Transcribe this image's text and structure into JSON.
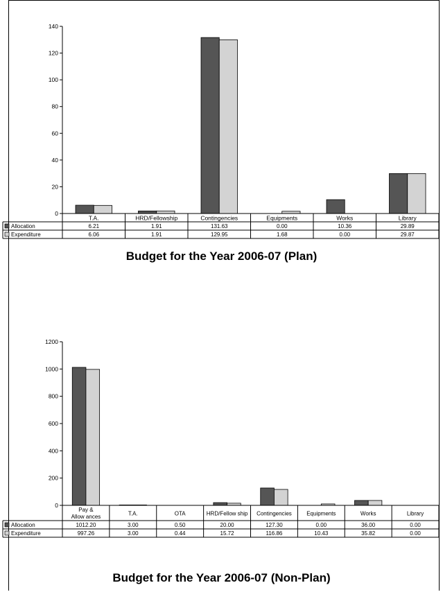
{
  "chart_data": [
    {
      "type": "bar",
      "title": "Budget for the Year 2006-07 (Plan)",
      "categories": [
        "T.A.",
        "HRD/Fellowship",
        "Contingencies",
        "Equipments",
        "Works",
        "Library"
      ],
      "series": [
        {
          "name": "Allocation",
          "values": [
            6.21,
            1.91,
            131.63,
            0.0,
            10.36,
            29.89
          ],
          "labels": [
            "6.21",
            "1.91",
            "131.63",
            "0.00",
            "10.36",
            "29.89"
          ]
        },
        {
          "name": "Expenditure",
          "values": [
            6.06,
            1.91,
            129.95,
            1.68,
            0.0,
            29.87
          ],
          "labels": [
            "6.06",
            "1.91",
            "129.95",
            "1.68",
            "0.00",
            "29.87"
          ]
        }
      ],
      "ylim": [
        0,
        140
      ],
      "yticks": [
        "0",
        "20",
        "40",
        "60",
        "80",
        "100",
        "120",
        "140"
      ],
      "colors": [
        "#555555",
        "#d3d3d3"
      ]
    },
    {
      "type": "bar",
      "title": "Budget for the Year 2006-07 (Non-Plan)",
      "categories": [
        "Pay & Allow ances",
        "T.A.",
        "OTA",
        "HRD/Fellow ship",
        "Contingencies",
        "Equipments",
        "Works",
        "Library"
      ],
      "series": [
        {
          "name": "Allocation",
          "values": [
            1012.2,
            3.0,
            0.5,
            20.0,
            127.3,
            0.0,
            36.0,
            0.0
          ],
          "labels": [
            "1012.20",
            "3.00",
            "0.50",
            "20.00",
            "127.30",
            "0.00",
            "36.00",
            "0.00"
          ]
        },
        {
          "name": "Expenditure",
          "values": [
            997.26,
            3.0,
            0.44,
            15.72,
            116.86,
            10.43,
            35.82,
            0.0
          ],
          "labels": [
            "997.26",
            "3.00",
            "0.44",
            "15.72",
            "116.86",
            "10.43",
            "35.82",
            "0.00"
          ]
        }
      ],
      "ylim": [
        0,
        1200
      ],
      "yticks": [
        "0",
        "200",
        "400",
        "600",
        "800",
        "1000",
        "1200"
      ],
      "colors": [
        "#555555",
        "#d3d3d3"
      ]
    }
  ]
}
